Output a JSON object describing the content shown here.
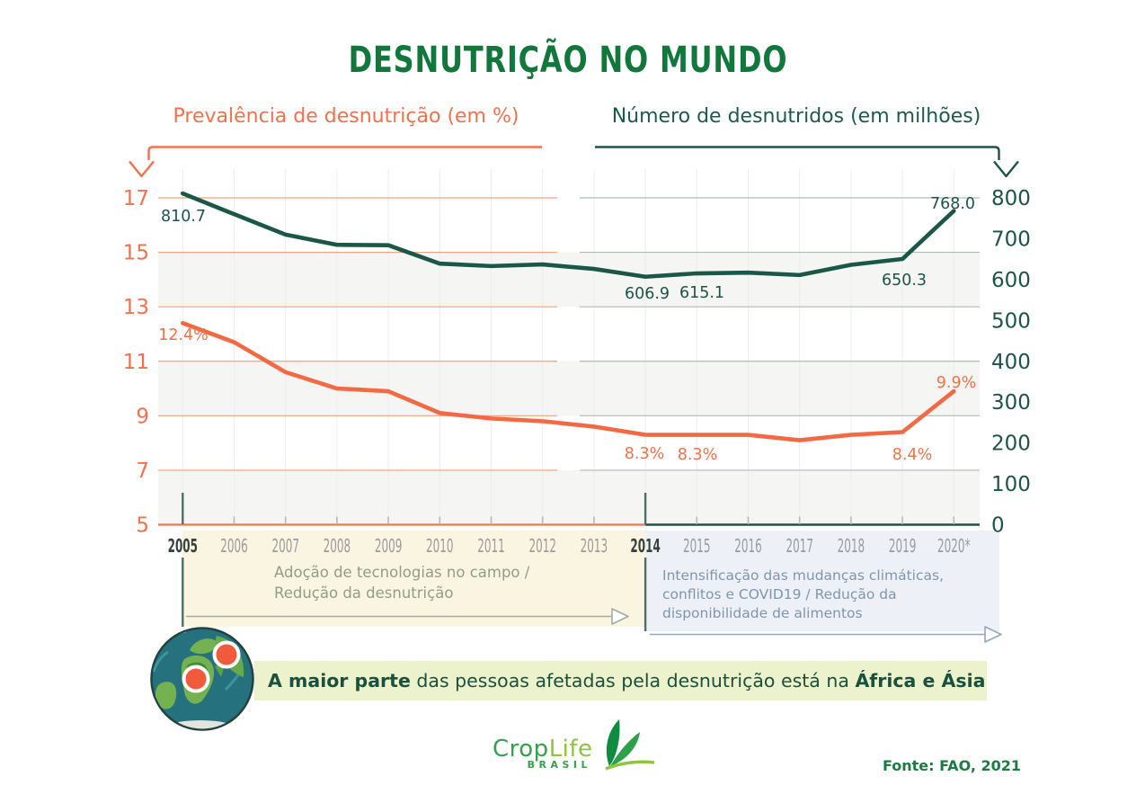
{
  "title": "DESNUTRIÇÃO NO MUNDO",
  "legend": {
    "prevalence": "Prevalência de desnutrição (em %)",
    "number": "Número de desnutridos (em milhões)"
  },
  "chart_data": {
    "type": "line",
    "x": [
      "2005",
      "2006",
      "2007",
      "2008",
      "2009",
      "2010",
      "2011",
      "2012",
      "2013",
      "2014",
      "2015",
      "2016",
      "2017",
      "2018",
      "2019",
      "2020*"
    ],
    "series": [
      {
        "name": "Prevalência de desnutrição (em %)",
        "axis": "left",
        "color": "#f26a44",
        "values": [
          12.4,
          11.7,
          10.6,
          10.0,
          9.9,
          9.1,
          8.9,
          8.8,
          8.6,
          8.3,
          8.3,
          8.3,
          8.1,
          8.3,
          8.4,
          9.9
        ]
      },
      {
        "name": "Número de desnutridos (em milhões)",
        "axis": "right",
        "color": "#1b5748",
        "values": [
          810.7,
          760,
          710,
          685,
          684,
          639,
          633,
          637,
          626,
          606.9,
          615.1,
          617,
          611,
          636,
          650.3,
          768.0
        ]
      }
    ],
    "left_axis": {
      "ticks": [
        17,
        15,
        13,
        11,
        9,
        7,
        5
      ],
      "min": 5,
      "max": 17
    },
    "right_axis": {
      "ticks": [
        800,
        700,
        600,
        500,
        400,
        300,
        200,
        100,
        0
      ],
      "min": 0,
      "max": 800
    },
    "point_labels": {
      "number": [
        "810.7",
        "606.9",
        "615.1",
        "650.3",
        "768.0"
      ],
      "prevalence": [
        "12.4%",
        "8.3%",
        "8.3%",
        "8.4%",
        "9.9%"
      ]
    },
    "grid": true,
    "legend_position": "top"
  },
  "annotations": {
    "left": {
      "line1": "Adoção de tecnologias no campo /",
      "line2": "Redução da desnutrição"
    },
    "right": {
      "line1": "Intensificação das mudanças climáticas,",
      "line2": "conflitos e COVID19 / Redução da",
      "line3": "disponibilidade de alimentos"
    }
  },
  "highlight": {
    "bold1": "A maior parte",
    "mid": " das pessoas afetadas pela desnutrição está na ",
    "bold2": "África e Ásia"
  },
  "logo": {
    "part1": "Crop",
    "part2": "Life",
    "sub": "BRASIL"
  },
  "source": "Fonte: FAO, 2021",
  "colors": {
    "title_green": "#12773d",
    "orange": "#f0724d",
    "dark_teal": "#1d5447",
    "yellow_region": "#faf5e1",
    "lavender_region": "#edf1f7",
    "highlight_band": "#ecf2cb",
    "marker_orange": "#f15b3c"
  }
}
